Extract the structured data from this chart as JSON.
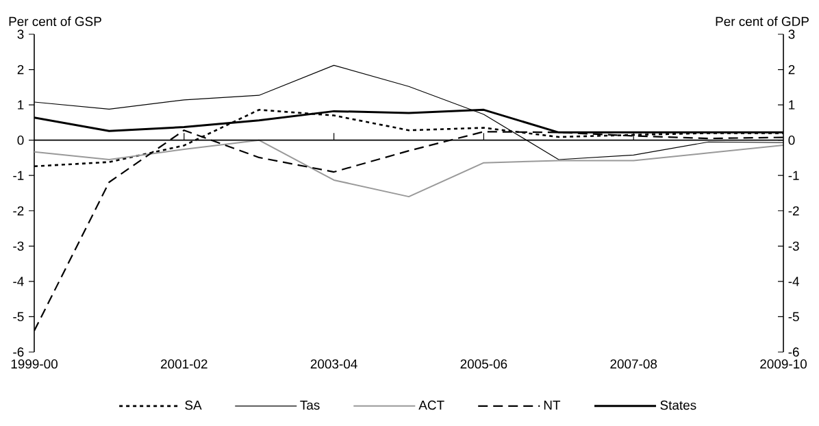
{
  "chart_data": {
    "type": "line",
    "ylabel": "Per cent of GSP",
    "y2label": "Per cent of GDP",
    "categories": [
      "1999-00",
      null,
      "2001-02",
      null,
      "2003-04",
      null,
      "2005-06",
      null,
      "2007-08",
      null,
      "2009-10"
    ],
    "ylim": [
      -6,
      3
    ],
    "yticks": [
      -6,
      -5,
      -4,
      -3,
      -2,
      -1,
      0,
      1,
      2,
      3
    ],
    "y2lim": [
      -6,
      3
    ],
    "y2ticks": [
      -6,
      -5,
      -4,
      -3,
      -2,
      -1,
      0,
      1,
      2,
      3
    ],
    "legend": "bottom",
    "series": [
      {
        "name": "SA",
        "color": "#000000",
        "line_style": "dotted",
        "values": [
          -0.74,
          -0.62,
          -0.15,
          0.86,
          0.7,
          0.28,
          0.35,
          0.09,
          0.15,
          0.2,
          0.2
        ]
      },
      {
        "name": "Tas",
        "color": "#000000",
        "line_style": "solid",
        "values": [
          1.08,
          0.88,
          1.14,
          1.27,
          2.12,
          1.52,
          0.73,
          -0.55,
          -0.42,
          -0.05,
          -0.07
        ]
      },
      {
        "name": "ACT",
        "color": "#999999",
        "line_style": "solid",
        "values": [
          -0.33,
          -0.55,
          -0.26,
          0.0,
          -1.13,
          -1.6,
          -0.64,
          -0.58,
          -0.58,
          -0.36,
          -0.14
        ]
      },
      {
        "name": "NT",
        "color": "#000000",
        "line_style": "dashed",
        "values": [
          -5.4,
          -1.19,
          0.28,
          -0.49,
          -0.9,
          -0.3,
          0.24,
          0.22,
          0.12,
          0.05,
          0.08
        ]
      },
      {
        "name": "States",
        "color": "#000000",
        "line_style": "solid",
        "values": [
          0.64,
          0.26,
          0.37,
          0.56,
          0.82,
          0.77,
          0.86,
          0.22,
          0.22,
          0.22,
          0.22
        ]
      }
    ]
  }
}
